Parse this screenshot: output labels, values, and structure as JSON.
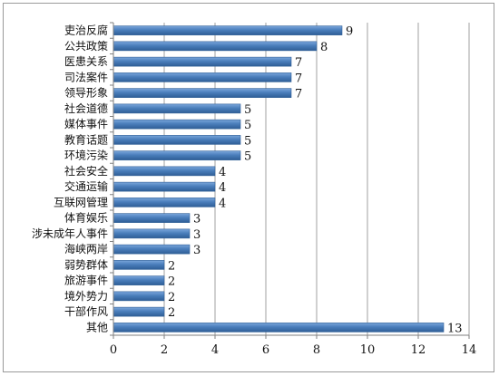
{
  "chart_data": {
    "type": "bar",
    "orientation": "horizontal",
    "categories": [
      "吏治反腐",
      "公共政策",
      "医患关系",
      "司法案件",
      "领导形象",
      "社会道德",
      "媒体事件",
      "教育话题",
      "环境污染",
      "社会安全",
      "交通运输",
      "互联网管理",
      "体育娱乐",
      "涉未成年人事件",
      "海峡两岸",
      "弱势群体",
      "旅游事件",
      "境外势力",
      "干部作风",
      "其他"
    ],
    "values": [
      9,
      8,
      7,
      7,
      7,
      5,
      5,
      5,
      5,
      4,
      4,
      4,
      3,
      3,
      3,
      2,
      2,
      2,
      2,
      13
    ],
    "xlim": [
      0,
      14
    ],
    "xticks": [
      0,
      2,
      4,
      6,
      8,
      10,
      12,
      14
    ],
    "grid": "vertical",
    "bar_color": "#4a7ebb",
    "bar_edge_color": "#2f5e96",
    "title": "",
    "xlabel": "",
    "ylabel": ""
  }
}
